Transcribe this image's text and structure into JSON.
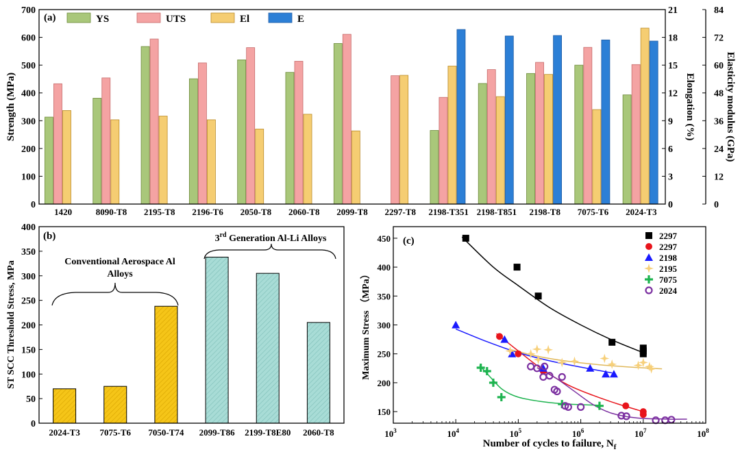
{
  "chart_data": [
    {
      "panel": "(a)",
      "type": "bar",
      "categories": [
        "1420",
        "8090-T8",
        "2195-T8",
        "2196-T6",
        "2050-T8",
        "2060-T8",
        "2099-T8",
        "2297-T8",
        "2198-T351",
        "2198-T851",
        "2198-T8",
        "7075-T6",
        "2024-T3"
      ],
      "series": [
        {
          "name": "YS",
          "axis": "left",
          "color": "#a9c77a",
          "stroke": "#6d8a3a",
          "values": [
            313,
            381,
            567,
            451,
            519,
            474,
            578,
            null,
            265,
            434,
            470,
            500,
            393
          ]
        },
        {
          "name": "UTS",
          "axis": "left",
          "color": "#f4a3a3",
          "stroke": "#c66a6a",
          "values": [
            433,
            454,
            594,
            508,
            563,
            514,
            611,
            462,
            384,
            484,
            510,
            564,
            502
          ]
        },
        {
          "name": "El",
          "axis": "elongation",
          "color": "#f5cd72",
          "stroke": "#b98b2a",
          "values": [
            10.1,
            9.1,
            9.5,
            9.1,
            8.1,
            9.7,
            7.9,
            13.9,
            14.9,
            11.6,
            14.0,
            10.2,
            19.0
          ]
        },
        {
          "name": "E",
          "axis": "modulus",
          "color": "#2c7fd6",
          "stroke": "#1d5aa3",
          "values": [
            null,
            null,
            null,
            null,
            null,
            null,
            null,
            null,
            75.4,
            72.6,
            72.8,
            70.9,
            70.4
          ]
        }
      ],
      "title": "(a)",
      "legend": [
        "YS",
        "UTS",
        "El",
        "E"
      ],
      "ylabel": "Strength (MPa)",
      "ylim": [
        0,
        700
      ],
      "yticks": [
        "0",
        "100",
        "200",
        "300",
        "400",
        "500",
        "600",
        "700"
      ],
      "y2label": "Elongation (%)",
      "y2lim": [
        0,
        21
      ],
      "y2ticks": [
        "0",
        "3",
        "6",
        "9",
        "12",
        "15",
        "18",
        "21"
      ],
      "y3label": "Elasticity modulus (GPa)",
      "y3lim": [
        0,
        84
      ],
      "y3ticks": [
        "0",
        "12",
        "24",
        "36",
        "48",
        "60",
        "72",
        "84"
      ]
    },
    {
      "panel": "(b)",
      "type": "bar",
      "categories": [
        "2024-T3",
        "7075-T6",
        "7050-T74",
        "2099-T86",
        "2199-T8E80",
        "2060-T8"
      ],
      "values": [
        70,
        75,
        238,
        338,
        305,
        205
      ],
      "colors": [
        "#f5c518",
        "#f5c518",
        "#f5c518",
        "#a8dcd6",
        "#a8dcd6",
        "#a8dcd6"
      ],
      "title": "(b)",
      "ylabel": "ST SCC Threshold Stress, MPa",
      "ylim": [
        0,
        400
      ],
      "yticks": [
        "0",
        "50",
        "100",
        "150",
        "200",
        "250",
        "300",
        "350",
        "400"
      ],
      "annotations": {
        "conventional_line1": "Conventional Aerospace Al",
        "conventional_line2": "Alloys",
        "gen3_prefix": "3",
        "gen3_sup": "rd",
        "gen3_suffix": " Generation Al-Li Alloys"
      }
    },
    {
      "panel": "(c)",
      "type": "scatter",
      "title": "(c)",
      "xscale": "log",
      "xlim_exp": [
        3,
        8
      ],
      "xtick_base": "10",
      "xtick_exps": [
        "3",
        "4",
        "5",
        "6",
        "7",
        "8"
      ],
      "ylim": [
        130,
        470
      ],
      "yticks": [
        "150",
        "200",
        "250",
        "300",
        "350",
        "400",
        "450"
      ],
      "xlabel_main": "Number of cycles to failure, N",
      "xlabel_sub": "f",
      "ylabel": "Maximum Stress （MPa）",
      "series": [
        {
          "name": "2297",
          "marker": "square",
          "color": "#000000",
          "points": [
            [
              4.16,
              450
            ],
            [
              4.98,
              400
            ],
            [
              5.32,
              350
            ],
            [
              6.5,
              270
            ],
            [
              7.0,
              260
            ],
            [
              7.0,
              255
            ],
            [
              7.0,
              250
            ]
          ],
          "fit": [
            [
              4.1,
              452
            ],
            [
              4.6,
              400
            ],
            [
              5.0,
              368
            ],
            [
              5.5,
              330
            ],
            [
              6.0,
              300
            ],
            [
              6.5,
              274
            ],
            [
              7.0,
              252
            ]
          ]
        },
        {
          "name": "2297",
          "marker": "circle",
          "color": "#e8141b",
          "points": [
            [
              4.7,
              280
            ],
            [
              5.0,
              250
            ],
            [
              5.4,
              220
            ],
            [
              6.72,
              160
            ],
            [
              7.0,
              150
            ],
            [
              7.0,
              145
            ]
          ],
          "fit": [
            [
              4.65,
              285
            ],
            [
              5.0,
              255
            ],
            [
              5.4,
              222
            ],
            [
              5.8,
              196
            ],
            [
              6.2,
              178
            ],
            [
              6.6,
              163
            ],
            [
              7.0,
              150
            ]
          ]
        },
        {
          "name": "2198",
          "marker": "triangle",
          "color": "#1a1aff",
          "points": [
            [
              4.0,
              300
            ],
            [
              4.78,
              275
            ],
            [
              4.9,
              250
            ],
            [
              5.4,
              225
            ],
            [
              6.15,
              225
            ],
            [
              6.4,
              215
            ],
            [
              6.53,
              215
            ]
          ],
          "fit": [
            [
              4.0,
              293
            ],
            [
              4.5,
              271
            ],
            [
              5.0,
              252
            ],
            [
              5.5,
              238
            ],
            [
              6.0,
              227
            ],
            [
              6.5,
              217
            ]
          ]
        },
        {
          "name": "2195",
          "marker": "star",
          "color": "#f7d07a",
          "points": [
            [
              4.87,
              255
            ],
            [
              5.2,
              250
            ],
            [
              5.3,
              258
            ],
            [
              5.48,
              257
            ],
            [
              5.32,
              240
            ],
            [
              5.7,
              235
            ],
            [
              5.9,
              237
            ],
            [
              6.38,
              242
            ],
            [
              6.5,
              232
            ],
            [
              6.92,
              230
            ],
            [
              7.0,
              235
            ],
            [
              7.1,
              228
            ],
            [
              7.13,
              224
            ]
          ],
          "fit": [
            [
              4.85,
              258
            ],
            [
              5.3,
              246
            ],
            [
              5.8,
              237
            ],
            [
              6.3,
              231
            ],
            [
              6.8,
              227
            ],
            [
              7.3,
              224
            ]
          ]
        },
        {
          "name": "7075",
          "marker": "plus",
          "color": "#1db34f",
          "points": [
            [
              4.4,
              226
            ],
            [
              4.5,
              220
            ],
            [
              4.6,
              200
            ],
            [
              4.73,
              175
            ],
            [
              5.7,
              163
            ],
            [
              6.3,
              160
            ]
          ],
          "fit": [
            [
              4.38,
              230
            ],
            [
              4.55,
              210
            ],
            [
              4.75,
              188
            ],
            [
              5.0,
              175
            ],
            [
              5.4,
              167
            ],
            [
              5.8,
              163
            ],
            [
              6.3,
              161
            ]
          ]
        },
        {
          "name": "2024",
          "marker": "ring",
          "color": "#7b2fa0",
          "points": [
            [
              5.2,
              228
            ],
            [
              5.3,
              225
            ],
            [
              5.42,
              228
            ],
            [
              5.4,
              210
            ],
            [
              5.5,
              212
            ],
            [
              5.58,
              188
            ],
            [
              5.62,
              185
            ],
            [
              5.7,
              210
            ],
            [
              5.75,
              160
            ],
            [
              5.8,
              158
            ],
            [
              6.0,
              158
            ],
            [
              6.65,
              143
            ],
            [
              6.73,
              142
            ],
            [
              7.2,
              135
            ],
            [
              7.35,
              135
            ],
            [
              7.45,
              136
            ]
          ],
          "fit": [
            [
              5.3,
              226
            ],
            [
              5.6,
              208
            ],
            [
              5.9,
              185
            ],
            [
              6.2,
              162
            ],
            [
              6.5,
              147
            ],
            [
              6.9,
              139
            ],
            [
              7.4,
              137
            ],
            [
              7.7,
              137
            ]
          ]
        }
      ]
    }
  ]
}
